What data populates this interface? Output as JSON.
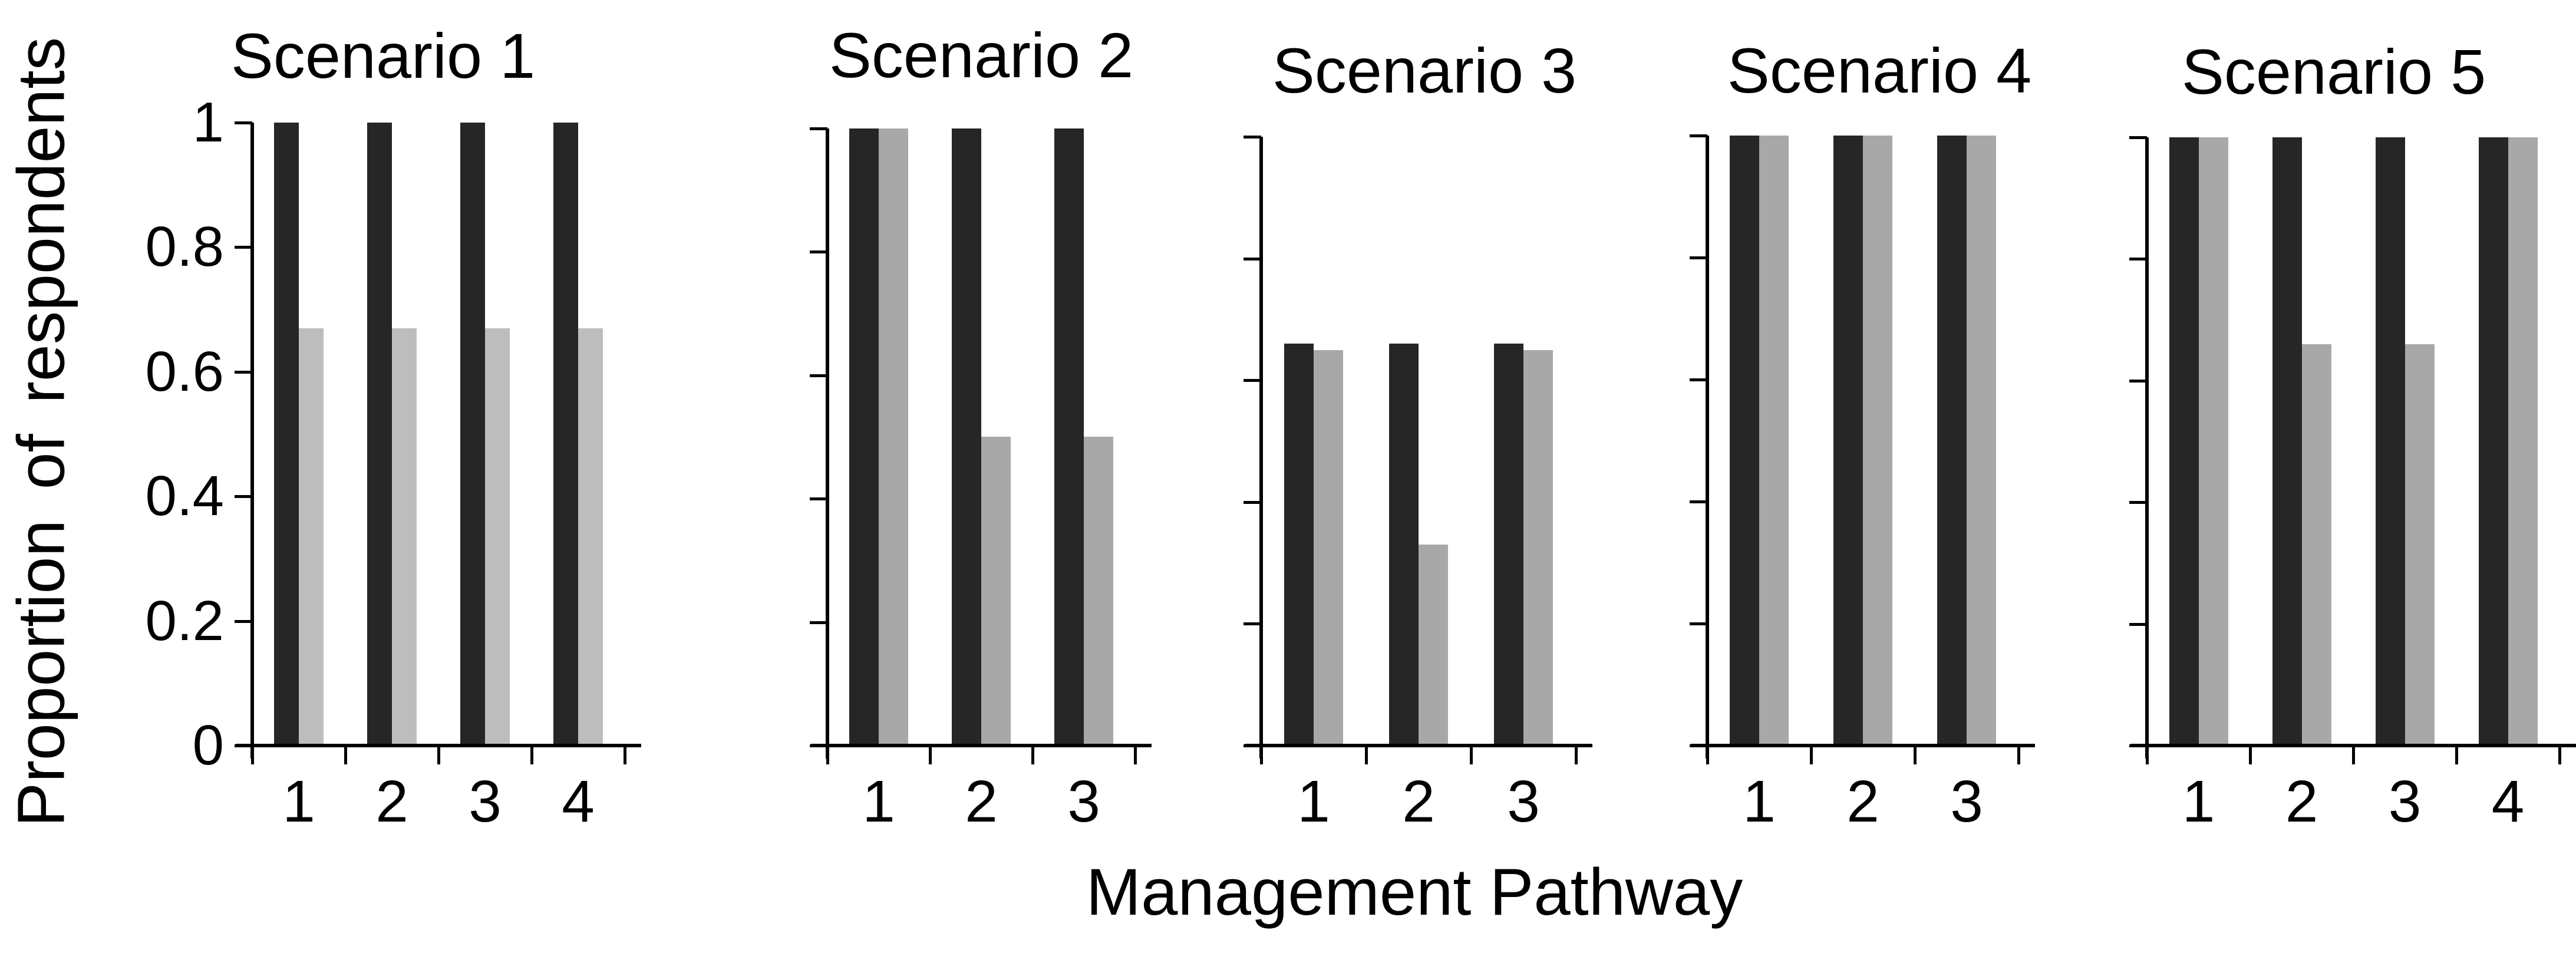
{
  "figure": {
    "ylabel": "Proportion of respondents",
    "xlabel": "Management Pathway"
  },
  "chart_data": [
    {
      "type": "bar",
      "title": "Scenario 1",
      "categories": [
        "1",
        "2",
        "3",
        "4"
      ],
      "series": [
        {
          "name": "black",
          "color": "#262626",
          "values": [
            1,
            1,
            1,
            1
          ]
        },
        {
          "name": "grey",
          "color": "#bdbdbd",
          "values": [
            0.67,
            0.67,
            0.67,
            0.67
          ]
        }
      ],
      "ylim": [
        0,
        1
      ],
      "yticks": [
        0,
        0.2,
        0.4,
        0.6,
        0.8,
        1
      ],
      "ytick_labels": [
        "0",
        "0.2",
        "0.4",
        "0.6",
        "0.8",
        "1"
      ],
      "show_ytick_labels": true,
      "grid": false,
      "legend": "none"
    },
    {
      "type": "bar",
      "title": "Scenario 2",
      "categories": [
        "1",
        "2",
        "3"
      ],
      "series": [
        {
          "name": "black",
          "color": "#262626",
          "values": [
            1,
            1,
            1
          ]
        },
        {
          "name": "grey",
          "color": "#a8a8a8",
          "values": [
            1,
            0.5,
            0.5
          ]
        }
      ],
      "ylim": [
        0,
        1
      ],
      "yticks": [
        0,
        0.2,
        0.4,
        0.6,
        0.8,
        1
      ],
      "ytick_labels": [],
      "show_ytick_labels": false,
      "grid": false,
      "legend": "none"
    },
    {
      "type": "bar",
      "title": "Scenario 3",
      "categories": [
        "1",
        "2",
        "3"
      ],
      "series": [
        {
          "name": "black",
          "color": "#262626",
          "values": [
            0.66,
            0.66,
            0.66
          ]
        },
        {
          "name": "grey",
          "color": "#a8a8a8",
          "values": [
            0.65,
            0.33,
            0.65
          ]
        }
      ],
      "ylim": [
        0,
        1
      ],
      "yticks": [
        0,
        0.2,
        0.4,
        0.6,
        0.8,
        1
      ],
      "ytick_labels": [],
      "show_ytick_labels": false,
      "grid": false,
      "legend": "none"
    },
    {
      "type": "bar",
      "title": "Scenario 4",
      "categories": [
        "1",
        "2",
        "3"
      ],
      "series": [
        {
          "name": "black",
          "color": "#262626",
          "values": [
            1,
            1,
            1
          ]
        },
        {
          "name": "grey",
          "color": "#a8a8a8",
          "values": [
            1,
            1,
            1
          ]
        }
      ],
      "ylim": [
        0,
        1
      ],
      "yticks": [
        0,
        0.2,
        0.4,
        0.6,
        0.8,
        1
      ],
      "ytick_labels": [],
      "show_ytick_labels": false,
      "grid": false,
      "legend": "none"
    },
    {
      "type": "bar",
      "title": "Scenario 5",
      "categories": [
        "1",
        "2",
        "3",
        "4"
      ],
      "series": [
        {
          "name": "black",
          "color": "#262626",
          "values": [
            1,
            1,
            1,
            1
          ]
        },
        {
          "name": "grey",
          "color": "#a8a8a8",
          "values": [
            1,
            0.66,
            0.66,
            1
          ]
        }
      ],
      "ylim": [
        0,
        1
      ],
      "yticks": [
        0,
        0.2,
        0.4,
        0.6,
        0.8,
        1
      ],
      "ytick_labels": [],
      "show_ytick_labels": false,
      "grid": false,
      "legend": "none"
    }
  ]
}
